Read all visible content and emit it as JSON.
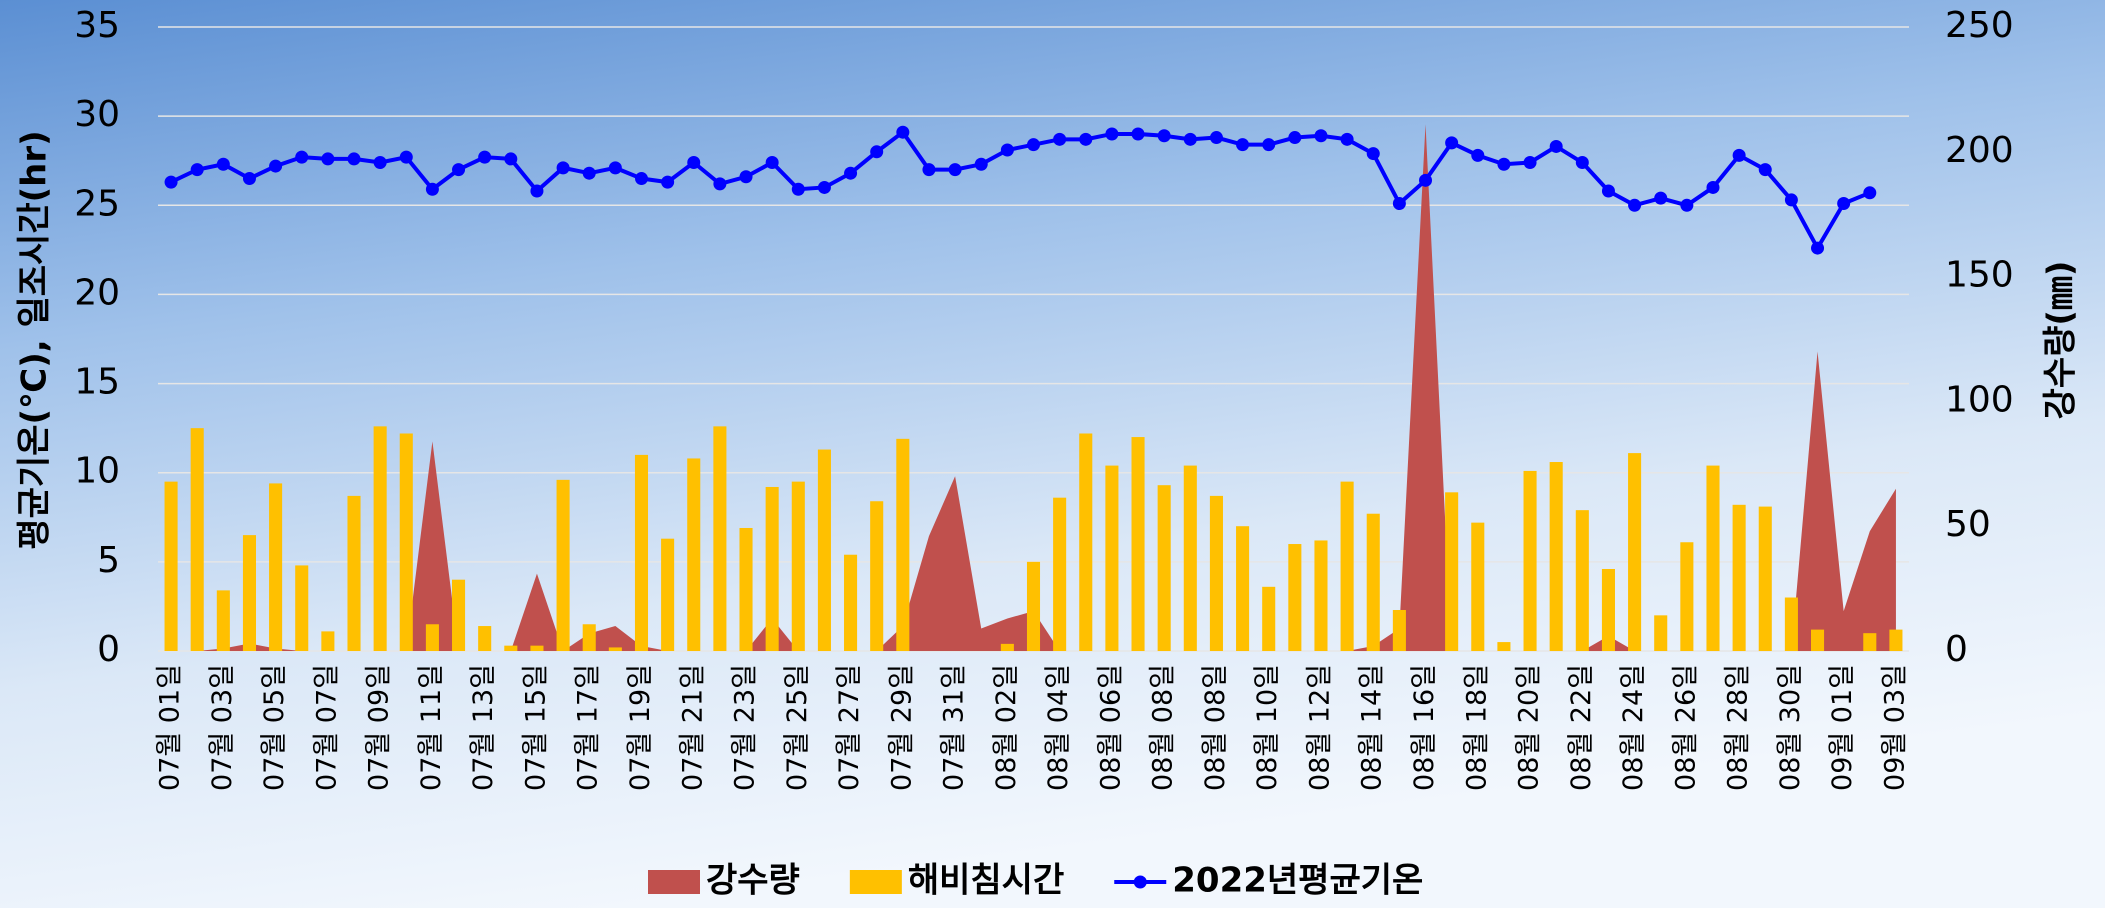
{
  "chart_data": {
    "type": "combo",
    "y_label": "평균기온(℃),  일조시간(hr)",
    "y2_label": "강수량(㎜)",
    "categories": [
      "07월 01일",
      null,
      "07월 03일",
      null,
      "07월 05일",
      null,
      "07월 07일",
      null,
      "07월 09일",
      null,
      "07월 11일",
      null,
      "07월 13일",
      null,
      "07월 15일",
      null,
      "07월 17일",
      null,
      "07월 19일",
      null,
      "07월 21일",
      null,
      "07월 23일",
      null,
      "07월 25일",
      null,
      "07월 27일",
      null,
      "07월 29일",
      null,
      "07월 31일",
      null,
      "08월 02일",
      null,
      "08월 04일",
      null,
      "08월 06일",
      null,
      "08월 08일",
      null,
      "08월 08일",
      null,
      "08월 10일",
      null,
      "08월 12일",
      null,
      "08월 14일",
      null,
      "08월 16일",
      null,
      "08월 18일",
      null,
      "08월 20일",
      null,
      "08월 22일",
      null,
      "08월 24일",
      null,
      "08월 26일",
      null,
      "08월 28일",
      null,
      "08월 30일",
      null,
      "09월 01일",
      null,
      "09월 03일"
    ],
    "series": [
      {
        "name": "강수량",
        "type": "area",
        "axis": "y2",
        "color": "#c0504d",
        "values": [
          0,
          0,
          1,
          3,
          1,
          0,
          0,
          0,
          0,
          0,
          84,
          0,
          0,
          0,
          31,
          0,
          7,
          10,
          2,
          0,
          0,
          0,
          0,
          13,
          0,
          0,
          0,
          0,
          10,
          46,
          70,
          9,
          13,
          16,
          0,
          0,
          0,
          0,
          0,
          0,
          0,
          0,
          0,
          0,
          0,
          0,
          2,
          9,
          211,
          0,
          0,
          0,
          0,
          0,
          0,
          6,
          0,
          0,
          0,
          0,
          0,
          0,
          0,
          120,
          16,
          48,
          65
        ]
      },
      {
        "name": "해비침시간",
        "type": "bar",
        "axis": "y",
        "color": "#ffc000",
        "values": [
          9.5,
          12.5,
          3.4,
          6.5,
          9.4,
          4.8,
          1.1,
          8.7,
          12.6,
          12.2,
          1.5,
          4.0,
          1.4,
          0.3,
          0.3,
          9.6,
          1.5,
          0.2,
          11.0,
          6.3,
          10.8,
          12.6,
          6.9,
          9.2,
          9.5,
          11.3,
          5.4,
          8.4,
          11.9,
          0,
          0,
          0,
          0.4,
          5.0,
          8.6,
          12.2,
          10.4,
          12.0,
          9.3,
          10.4,
          8.7,
          7.0,
          3.6,
          6.0,
          6.2,
          9.5,
          7.7,
          2.3,
          0,
          8.9,
          7.2,
          0.5,
          10.1,
          10.6,
          7.9,
          4.6,
          11.1,
          2.0,
          6.1,
          10.4,
          8.2,
          8.1,
          3.0,
          1.2,
          0,
          1.0,
          1.2
        ]
      },
      {
        "name": "2022년평균기온",
        "type": "line",
        "axis": "y",
        "color": "#0000ff",
        "values": [
          26.3,
          27.0,
          27.3,
          26.5,
          27.2,
          27.7,
          27.6,
          27.6,
          27.4,
          27.7,
          25.9,
          27.0,
          27.7,
          27.6,
          25.8,
          27.1,
          26.8,
          27.1,
          26.5,
          26.3,
          27.4,
          26.2,
          26.6,
          27.4,
          25.9,
          26.0,
          26.8,
          28.0,
          29.1,
          27.0,
          27.0,
          27.3,
          28.1,
          28.4,
          28.7,
          28.7,
          29.0,
          29.0,
          28.9,
          28.7,
          28.8,
          28.4,
          28.4,
          28.8,
          28.9,
          28.7,
          27.9,
          25.1,
          26.4,
          28.5,
          27.8,
          27.3,
          27.4,
          28.3,
          27.4,
          25.8,
          25.0,
          25.4,
          25.0,
          26.0,
          27.8,
          27.0,
          25.3,
          22.6,
          25.1,
          25.7,
          null
        ]
      }
    ],
    "ylim": [
      0,
      35
    ],
    "yticks": [
      0,
      5,
      10,
      15,
      20,
      25,
      30,
      35
    ],
    "y2lim": [
      0,
      250
    ],
    "y2ticks": [
      0,
      50,
      100,
      150,
      200,
      250
    ],
    "grid": true,
    "legend": "bottom"
  }
}
